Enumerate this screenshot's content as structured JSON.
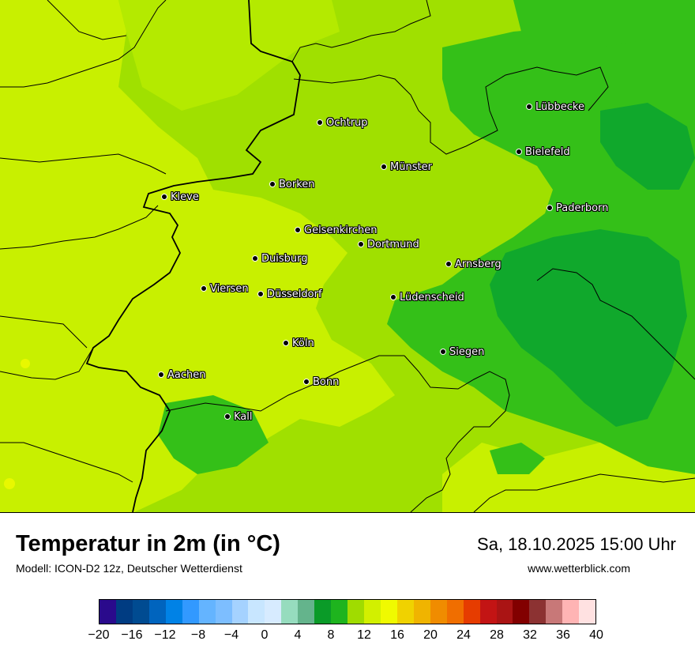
{
  "map": {
    "cities": [
      {
        "name": "Lübbecke"
      },
      {
        "name": "Ochtrup"
      },
      {
        "name": "Bielefeld"
      },
      {
        "name": "Münster"
      },
      {
        "name": "Borken"
      },
      {
        "name": "Kleve"
      },
      {
        "name": "Paderborn"
      },
      {
        "name": "Gelsenkirchen"
      },
      {
        "name": "Dortmund"
      },
      {
        "name": "Duisburg"
      },
      {
        "name": "Arnsberg"
      },
      {
        "name": "Viersen"
      },
      {
        "name": "Düsseldorf"
      },
      {
        "name": "Lüdenscheid"
      },
      {
        "name": "Köln"
      },
      {
        "name": "Siegen"
      },
      {
        "name": "Aachen"
      },
      {
        "name": "Bonn"
      },
      {
        "name": "Kall"
      }
    ],
    "colors": {
      "warm_yellow_green": "#c8f000",
      "light_green": "#a0e000",
      "mid_green": "#20b814",
      "dark_green": "#0ca030",
      "yellow_spot": "#e8f800"
    }
  },
  "header": {
    "title": "Temperatur in 2m (in °C)",
    "model": "Modell: ICON-D2 12z, Deutscher Wetterdienst",
    "datetime": "Sa, 18.10.2025 15:00 Uhr",
    "website": "www.wetterblick.com"
  },
  "legend": {
    "min": -20,
    "max": 40,
    "step": 2,
    "colors": [
      "#2a0a8c",
      "#003c82",
      "#004b91",
      "#0064be",
      "#0082e6",
      "#3299ff",
      "#64b4ff",
      "#7dbeff",
      "#a5d2ff",
      "#c8e6ff",
      "#d7ebff",
      "#96dcbe",
      "#64b48c",
      "#0a9b28",
      "#1eb41e",
      "#a0dc00",
      "#d2f000",
      "#f0fa00",
      "#f0d200",
      "#f0b400",
      "#f08c00",
      "#f06e00",
      "#e63c00",
      "#c31414",
      "#aa1414",
      "#820000",
      "#8c3232",
      "#c87878",
      "#ffb4b4",
      "#ffe1e1"
    ],
    "tick_labels": [
      "−20",
      "−16",
      "−12",
      "−8",
      "−4",
      "0",
      "4",
      "8",
      "12",
      "16",
      "20",
      "24",
      "28",
      "32",
      "36",
      "40"
    ]
  }
}
